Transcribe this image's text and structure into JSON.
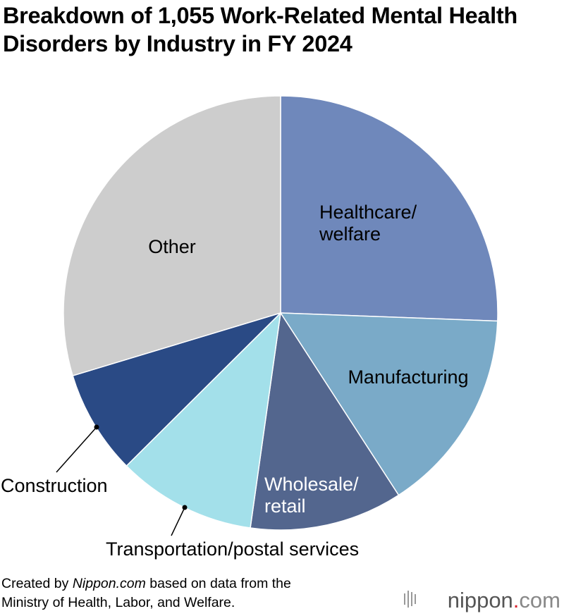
{
  "chart_data": {
    "type": "pie",
    "title": "Breakdown of 1,055 Work-Related Mental Health Disorders by Industry in FY 2024",
    "categories": [
      "Healthcare/welfare",
      "Manufacturing",
      "Wholesale/retail",
      "Transportation/postal services",
      "Construction",
      "Other"
    ],
    "values": [
      270,
      161,
      120,
      109,
      82,
      313
    ],
    "colors": [
      "#6f88bb",
      "#7aaac8",
      "#53668e",
      "#a3e0ea",
      "#2a4a85",
      "#cdcdcd"
    ],
    "source": [
      "Created by ",
      "Nippon.com",
      " based on data from the",
      "Ministry of Health, Labor, and Welfare."
    ],
    "logo": [
      "nippon",
      ".",
      "com"
    ]
  }
}
